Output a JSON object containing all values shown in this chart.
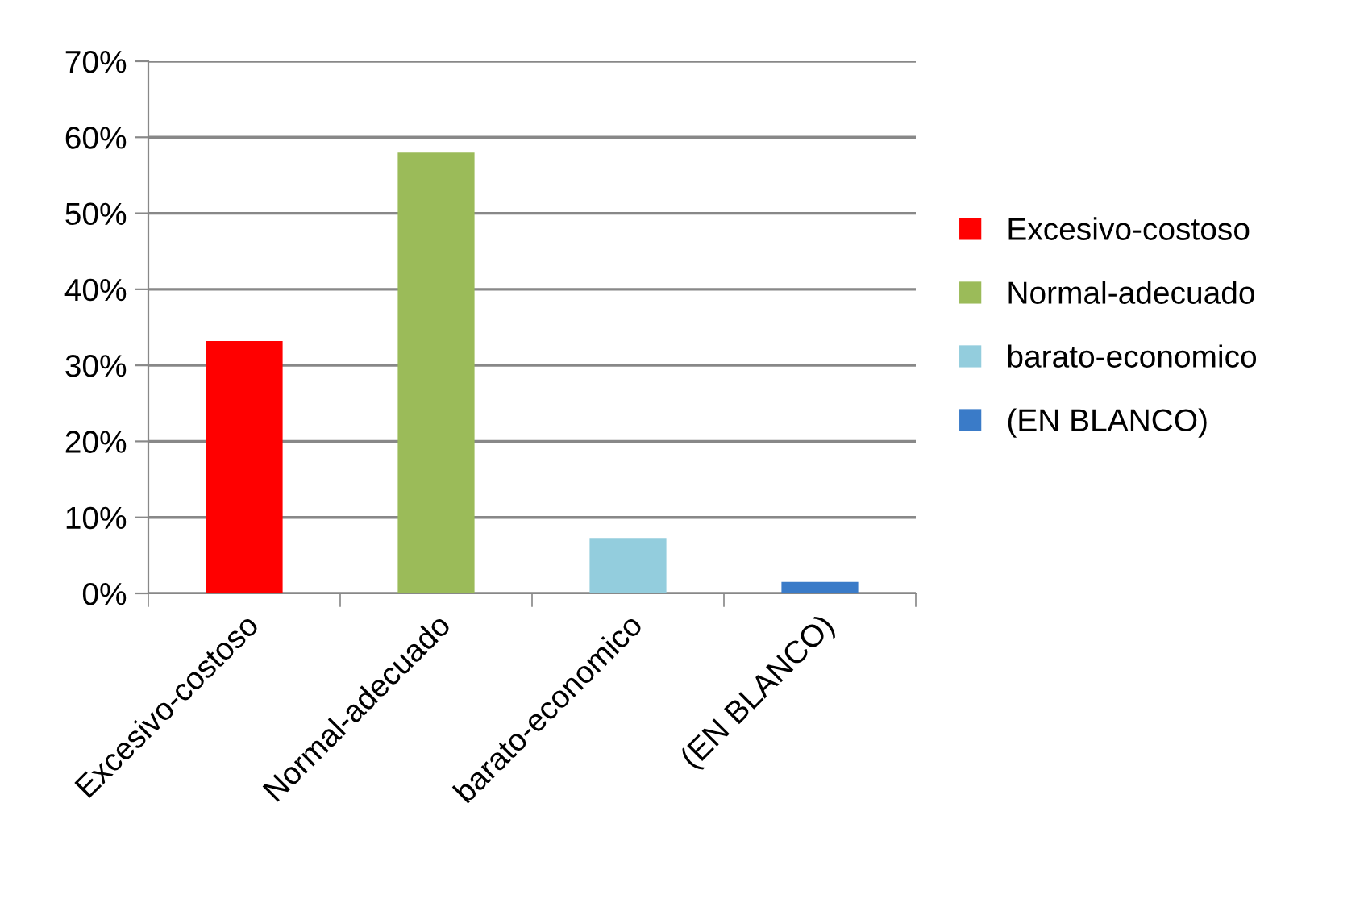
{
  "chart_data": {
    "type": "bar",
    "categories": [
      "Excesivo-costoso",
      "Normal-adecuado",
      "barato-economico",
      "(EN BLANCO)"
    ],
    "series": [
      {
        "name": "Excesivo-costoso",
        "color": "#ff0000",
        "values": [
          33.2,
          null,
          null,
          null
        ]
      },
      {
        "name": "Normal-adecuado",
        "color": "#9bbb59",
        "values": [
          null,
          58,
          null,
          null
        ]
      },
      {
        "name": "barato-economico",
        "color": "#93cddd",
        "values": [
          null,
          null,
          7.3,
          null
        ]
      },
      {
        "name": "(EN BLANCO)",
        "color": "#3a7bc8",
        "values": [
          null,
          null,
          null,
          1.5
        ]
      }
    ],
    "ylim": [
      0,
      70
    ],
    "yticks": [
      {
        "value": 0,
        "label": "0%"
      },
      {
        "value": 10,
        "label": "10%"
      },
      {
        "value": 20,
        "label": "20%"
      },
      {
        "value": 30,
        "label": "30%"
      },
      {
        "value": 40,
        "label": "40%"
      },
      {
        "value": 50,
        "label": "50%"
      },
      {
        "value": 60,
        "label": "60%"
      },
      {
        "value": 70,
        "label": "70%"
      }
    ],
    "grid": "y",
    "legend": "right"
  }
}
